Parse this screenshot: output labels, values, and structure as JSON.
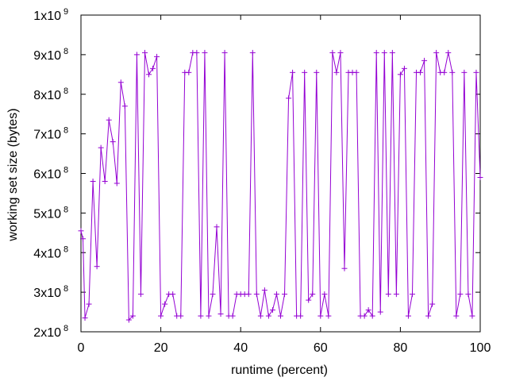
{
  "chart_data": {
    "type": "line",
    "title": "",
    "xlabel": "runtime (percent)",
    "ylabel": "working set size (bytes)",
    "xlim": [
      0,
      100
    ],
    "ylim": [
      200000000,
      1000000000
    ],
    "xticks": [
      0,
      20,
      40,
      60,
      80,
      100
    ],
    "xtick_labels": [
      "0",
      "20",
      "40",
      "60",
      "80",
      "100"
    ],
    "yticks": [
      200000000,
      300000000,
      400000000,
      500000000,
      600000000,
      700000000,
      800000000,
      900000000,
      1000000000
    ],
    "ytick_labels": [
      {
        "mantissa": "2x10",
        "exponent": "8"
      },
      {
        "mantissa": "3x10",
        "exponent": "8"
      },
      {
        "mantissa": "4x10",
        "exponent": "8"
      },
      {
        "mantissa": "5x10",
        "exponent": "8"
      },
      {
        "mantissa": "6x10",
        "exponent": "8"
      },
      {
        "mantissa": "7x10",
        "exponent": "8"
      },
      {
        "mantissa": "8x10",
        "exponent": "8"
      },
      {
        "mantissa": "9x10",
        "exponent": "8"
      },
      {
        "mantissa": "1x10",
        "exponent": "9"
      }
    ],
    "grid": false,
    "color": "#9400d3",
    "marker": "plus",
    "x": [
      0,
      0.5,
      1,
      2,
      3,
      4,
      5,
      6,
      7,
      8,
      9,
      10,
      11,
      12,
      13,
      14,
      15,
      16,
      17,
      18,
      19,
      20,
      21,
      22,
      23,
      24,
      25,
      26,
      27,
      28,
      29,
      30,
      31,
      32,
      33,
      34,
      35,
      36,
      37,
      38,
      39,
      40,
      41,
      42,
      43,
      44,
      45,
      46,
      47,
      48,
      49,
      50,
      51,
      52,
      53,
      54,
      55,
      56,
      57,
      58,
      59,
      60,
      61,
      62,
      63,
      64,
      65,
      66,
      67,
      68,
      69,
      70,
      71,
      72,
      73,
      74,
      75,
      76,
      77,
      78,
      79,
      80,
      81,
      82,
      83,
      84,
      85,
      86,
      87,
      88,
      89,
      90,
      91,
      92,
      93,
      94,
      95,
      96,
      97,
      98,
      99,
      100
    ],
    "y": [
      455000000,
      435000000,
      235000000,
      270000000,
      580000000,
      365000000,
      665000000,
      580000000,
      735000000,
      680000000,
      575000000,
      830000000,
      770000000,
      230000000,
      240000000,
      900000000,
      295000000,
      905000000,
      850000000,
      865000000,
      895000000,
      240000000,
      270000000,
      295000000,
      295000000,
      240000000,
      240000000,
      855000000,
      855000000,
      905000000,
      905000000,
      240000000,
      905000000,
      240000000,
      295000000,
      465000000,
      245000000,
      905000000,
      240000000,
      240000000,
      295000000,
      295000000,
      295000000,
      295000000,
      905000000,
      295000000,
      240000000,
      305000000,
      240000000,
      255000000,
      295000000,
      240000000,
      295000000,
      790000000,
      855000000,
      240000000,
      240000000,
      855000000,
      280000000,
      295000000,
      855000000,
      240000000,
      295000000,
      240000000,
      905000000,
      855000000,
      905000000,
      360000000,
      855000000,
      855000000,
      855000000,
      240000000,
      240000000,
      255000000,
      240000000,
      905000000,
      250000000,
      905000000,
      295000000,
      905000000,
      295000000,
      850000000,
      865000000,
      240000000,
      295000000,
      855000000,
      855000000,
      885000000,
      240000000,
      270000000,
      905000000,
      855000000,
      855000000,
      905000000,
      855000000,
      240000000,
      295000000,
      855000000,
      295000000,
      240000000,
      855000000,
      590000000
    ]
  }
}
